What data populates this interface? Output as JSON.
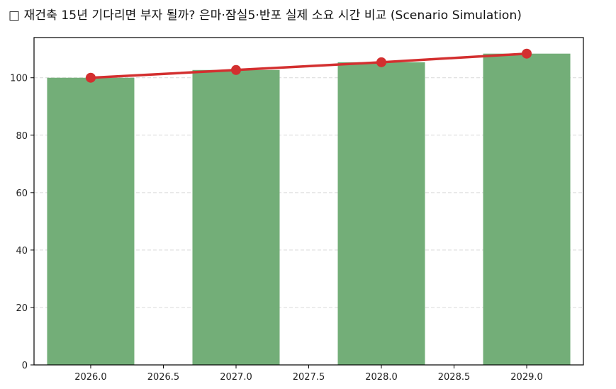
{
  "title": "□ 재건축 15년 기다리면 부자 될까? 은마·잠실5·반포 실제 소요 시간 비교 (Scenario Simulation)",
  "colors": {
    "bar": "#73ae78",
    "line": "#d32f2f",
    "grid": "#d9d9d9",
    "axis": "#000000"
  },
  "chart_data": {
    "type": "bar+line",
    "title": "□ 재건축 15년 기다리면 부자 될까? 은마·잠실5·반포 실제 소요 시간 비교 (Scenario Simulation)",
    "xlabel": "",
    "ylabel": "",
    "x": [
      2026,
      2027,
      2028,
      2029
    ],
    "series": [
      {
        "name": "bar",
        "type": "bar",
        "values": [
          100,
          102.7,
          105.4,
          108.4
        ],
        "width": 0.6
      },
      {
        "name": "line",
        "type": "line",
        "marker": "o",
        "values": [
          100,
          102.7,
          105.4,
          108.4
        ]
      }
    ],
    "xlim": [
      2025.61,
      2029.39
    ],
    "ylim": [
      0,
      114
    ],
    "xticks": [
      "2026.0",
      "2026.5",
      "2027.0",
      "2027.5",
      "2028.0",
      "2028.5",
      "2029.0"
    ],
    "xtick_values": [
      2026.0,
      2026.5,
      2027.0,
      2027.5,
      2028.0,
      2028.5,
      2029.0
    ],
    "yticks": [
      "0",
      "20",
      "40",
      "60",
      "80",
      "100"
    ],
    "ytick_values": [
      0,
      20,
      40,
      60,
      80,
      100
    ],
    "grid": "y-dashed",
    "legend": null
  }
}
